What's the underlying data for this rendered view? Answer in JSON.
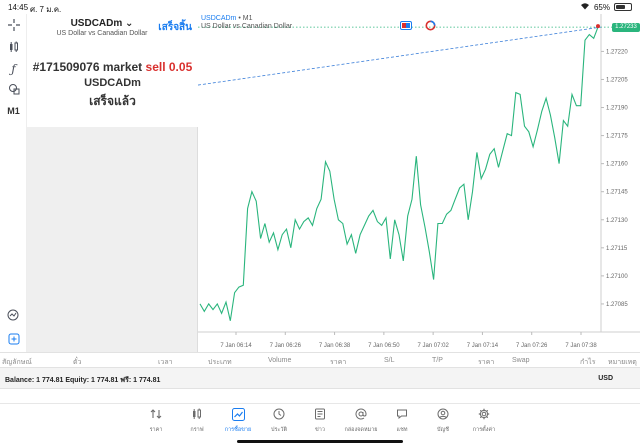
{
  "status_bar": {
    "time": "14:45",
    "date": "ศ. 7 ม.ค.",
    "battery": "65%",
    "battery_level": 0.65
  },
  "left_toolbar": {
    "timeframe": "M1"
  },
  "order_panel": {
    "symbol": "USDCADm",
    "symbol_description": "US Dollar vs Canadian Dollar",
    "done_label": "เสร็จสิ้น",
    "order_prefix": "#171509076 market",
    "order_action": "sell 0.05",
    "order_symbol": "USDCADm",
    "order_status": "เสร็จแล้ว"
  },
  "chart": {
    "symbol": "USDCADm",
    "timeframe": "• M1",
    "description": "US Dollar vs Canadian Dollar",
    "current_price": "1.27233"
  },
  "chart_data": {
    "type": "line",
    "title": "USDCADm • M1",
    "subtitle": "US Dollar vs Canadian Dollar",
    "y_ticks": [
      "1.27220",
      "1.27205",
      "1.27190",
      "1.27175",
      "1.27160",
      "1.27145",
      "1.27130",
      "1.27115",
      "1.27100",
      "1.27085"
    ],
    "x_ticks": [
      "7 Jan 06:14",
      "7 Jan 06:26",
      "7 Jan 06:38",
      "7 Jan 06:50",
      "7 Jan 07:02",
      "7 Jan 07:14",
      "7 Jan 07:26",
      "7 Jan 07:38"
    ],
    "ylim": [
      1.2707,
      1.2724
    ],
    "current_price": 1.27233,
    "series": [
      {
        "values": [
          1.27085,
          1.27081,
          1.27085,
          1.27082,
          1.27085,
          1.2708,
          1.27086,
          1.27076,
          1.27091,
          1.27094,
          1.27095,
          1.27136,
          1.27145,
          1.2714,
          1.2712,
          1.27128,
          1.27118,
          1.27123,
          1.27114,
          1.27122,
          1.27125,
          1.27115,
          1.2713,
          1.27125,
          1.27129,
          1.27131,
          1.27127,
          1.27136,
          1.27141,
          1.27161,
          1.27156,
          1.27141,
          1.2713,
          1.27128,
          1.27117,
          1.27122,
          1.27112,
          1.27122,
          1.27127,
          1.27132,
          1.27135,
          1.27129,
          1.27127,
          1.27131,
          1.27109,
          1.2713,
          1.27122,
          1.27108,
          1.27132,
          1.27141,
          1.27164,
          1.27138,
          1.27126,
          1.27113,
          1.27098,
          1.27128,
          1.27128,
          1.27133,
          1.27135,
          1.27141,
          1.27147,
          1.27149,
          1.2713,
          1.27145,
          1.27166,
          1.27152,
          1.27157,
          1.27165,
          1.27168,
          1.27158,
          1.27167,
          1.27176,
          1.27175,
          1.27198,
          1.27197,
          1.2718,
          1.27177,
          1.27169,
          1.27178,
          1.27188,
          1.27195,
          1.27186,
          1.27174,
          1.2716,
          1.27183,
          1.2718,
          1.27197,
          1.27191,
          1.27191,
          1.27226,
          1.27229,
          1.27227,
          1.27233
        ]
      }
    ],
    "reference_line": {
      "from_price": 1.27202,
      "to_price": 1.27233
    }
  },
  "positions_header": [
    "สัญลักษณ์",
    "ตั๋ว",
    "เวลา",
    "ประเภท",
    "Volume",
    "ราคา",
    "S/L",
    "T/P",
    "ราคา",
    "Swap",
    "กำไร",
    "หมายเหตุ"
  ],
  "balance_bar": {
    "text": "Balance: 1 774.81 Equity: 1 774.81 ฟรี: 1 774.81",
    "currency": "USD"
  },
  "tabs": [
    {
      "label": "ราคา",
      "icon": "quotes-icon"
    },
    {
      "label": "กราฟ",
      "icon": "chart-candles-icon"
    },
    {
      "label": "การซื้อขาย",
      "icon": "trade-icon",
      "active": true
    },
    {
      "label": "ประวัติ",
      "icon": "history-icon"
    },
    {
      "label": "ข่าว",
      "icon": "news-icon"
    },
    {
      "label": "กล่องจดหมาย",
      "icon": "mailbox-icon"
    },
    {
      "label": "แชท",
      "icon": "chat-icon"
    },
    {
      "label": "บัญชี",
      "icon": "account-icon"
    },
    {
      "label": "การตั้งค่า",
      "icon": "settings-icon"
    }
  ],
  "colors": {
    "accent": "#1a7df0",
    "line": "#2ab57d",
    "sell": "#d9302e"
  }
}
